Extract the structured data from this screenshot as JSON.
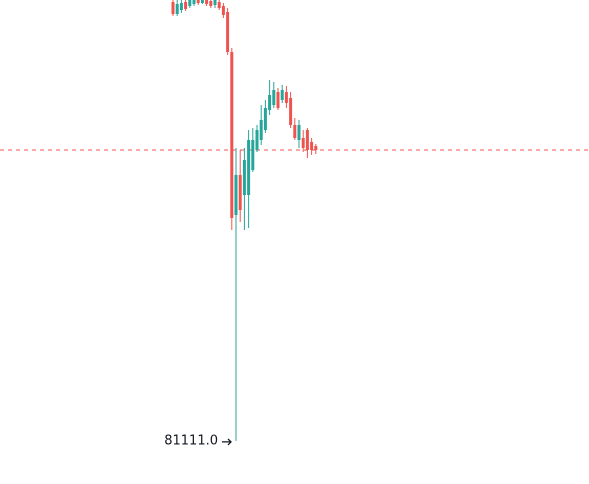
{
  "chart_data": {
    "type": "candlestick",
    "ylim": [
      80680,
      85520
    ],
    "up_color": "#26a69a",
    "down_color": "#ef5350",
    "open": [
      85500,
      85380,
      85420,
      85500,
      85460,
      85480,
      85520,
      85490,
      85520,
      85510,
      85470,
      85500,
      85460,
      85400,
      85000,
      83370,
      83770,
      83570,
      83570,
      83820,
      84020,
      84120,
      84220,
      84420,
      84470,
      84600,
      84520,
      84600,
      84540,
      84270,
      84120,
      84140,
      84220,
      84100,
      84060
    ],
    "high": [
      85520,
      85520,
      85520,
      85520,
      85520,
      85520,
      85520,
      85520,
      85520,
      85520,
      85520,
      85520,
      85490,
      85440,
      85040,
      84040,
      84020,
      84040,
      84220,
      84240,
      84270,
      84470,
      84520,
      84720,
      84700,
      84640,
      84670,
      84660,
      84600,
      84340,
      84320,
      84220,
      84240,
      84140,
      84080
    ],
    "low": [
      85360,
      85360,
      85390,
      85410,
      85440,
      85460,
      85470,
      85480,
      85460,
      85440,
      85440,
      85420,
      85340,
      84970,
      83220,
      81111,
      83300,
      83220,
      83240,
      83800,
      84000,
      84070,
      84190,
      84370,
      84440,
      84420,
      84490,
      84440,
      84240,
      84120,
      84040,
      84000,
      83940,
      83970,
      83980
    ],
    "close": [
      85380,
      85480,
      85490,
      85430,
      85520,
      85520,
      85490,
      85520,
      85480,
      85460,
      85520,
      85440,
      85370,
      85000,
      83340,
      83770,
      83420,
      83920,
      84120,
      84120,
      84220,
      84320,
      84440,
      84570,
      84620,
      84440,
      84620,
      84490,
      84270,
      84140,
      84270,
      84040,
      84020,
      84020,
      84020
    ],
    "last_price": {
      "value": 84020,
      "color": "#ef5350"
    },
    "low_marker": {
      "value": 81111,
      "label": "81111.0"
    }
  }
}
